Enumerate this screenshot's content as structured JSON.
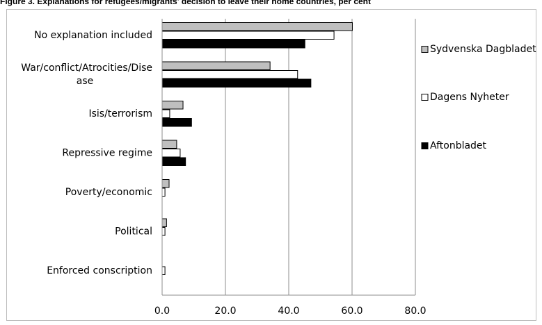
{
  "header": {
    "caption": "Figure 3. Explanations for refugees/migrants' decision to leave their home countries, per cent"
  },
  "chart_data": {
    "type": "bar",
    "orientation": "horizontal",
    "title": "",
    "xlabel": "",
    "ylabel": "",
    "xlim": [
      0,
      80
    ],
    "x_ticks": [
      0,
      20,
      40,
      60,
      80
    ],
    "x_tick_labels": [
      "0.0",
      "20.0",
      "40.0",
      "60.0",
      "80.0"
    ],
    "grid": true,
    "legend_position": "right",
    "categories": [
      "No explanation included",
      "War/conflict/Atrocities/Disease",
      "Isis/terrorism",
      "Repressive regime",
      "Poverty/economic",
      "Political",
      "Enforced conscription"
    ],
    "category_label_lines": [
      [
        "No explanation included"
      ],
      [
        "War/conflict/Atrocities/Dise",
        "ase"
      ],
      [
        "Isis/terrorism"
      ],
      [
        "Repressive regime"
      ],
      [
        "Poverty/economic"
      ],
      [
        "Political"
      ],
      [
        "Enforced conscription"
      ]
    ],
    "series": [
      {
        "name": "Sydvenska Dagbladet",
        "color": "#bfbfbf",
        "values": [
          60.1,
          34.1,
          6.6,
          4.6,
          2.2,
          1.4,
          0.0
        ]
      },
      {
        "name": "Dagens Nyheter",
        "color": "#ffffff",
        "values": [
          54.3,
          42.8,
          2.4,
          5.7,
          0.9,
          0.9,
          0.9
        ]
      },
      {
        "name": "Aftonbladet",
        "color": "#000000",
        "values": [
          45.1,
          47.0,
          9.3,
          7.4,
          0.0,
          0.0,
          0.0
        ]
      }
    ]
  }
}
